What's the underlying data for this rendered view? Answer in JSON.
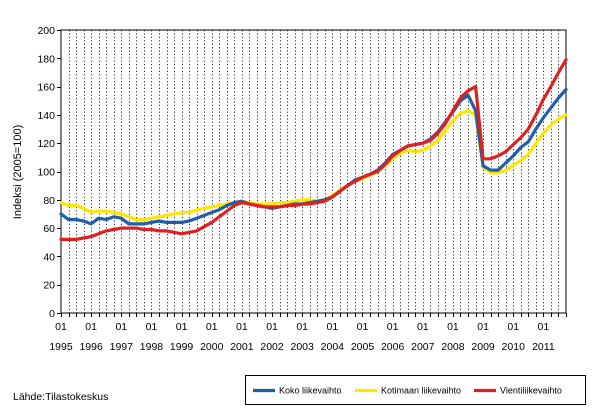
{
  "chart_data": {
    "type": "line",
    "title": "",
    "xlabel": "",
    "ylabel": "Indeksi (2005=100)",
    "ylim": [
      0,
      200
    ],
    "yticks": [
      0,
      20,
      40,
      60,
      80,
      100,
      120,
      140,
      160,
      180,
      200
    ],
    "xlim": [
      1995.0,
      2011.75
    ],
    "year_ticks": [
      {
        "month": "01",
        "year": "1995"
      },
      {
        "month": "01",
        "year": "1996"
      },
      {
        "month": "01",
        "year": "1997"
      },
      {
        "month": "01",
        "year": "1998"
      },
      {
        "month": "01",
        "year": "1999"
      },
      {
        "month": "01",
        "year": "2000"
      },
      {
        "month": "01",
        "year": "2001"
      },
      {
        "month": "01",
        "year": "2002"
      },
      {
        "month": "01",
        "year": "2003"
      },
      {
        "month": "01",
        "year": "2004"
      },
      {
        "month": "01",
        "year": "2005"
      },
      {
        "month": "01",
        "year": "2006"
      },
      {
        "month": "01",
        "year": "2007"
      },
      {
        "month": "01",
        "year": "2008"
      },
      {
        "month": "01",
        "year": "2009"
      },
      {
        "month": "01",
        "year": "2010"
      },
      {
        "month": "01",
        "year": "2011"
      }
    ],
    "grid": "vertical dashed at every quarter",
    "legend_position": "bottom-right",
    "series": [
      {
        "name": "Koko liikevaihto",
        "color": "#1f5fa8",
        "x": [
          1995.0,
          1995.25,
          1995.5,
          1995.75,
          1996.0,
          1996.25,
          1996.5,
          1996.75,
          1997.0,
          1997.25,
          1997.5,
          1997.75,
          1998.0,
          1998.25,
          1998.5,
          1998.75,
          1999.0,
          1999.25,
          1999.5,
          1999.75,
          2000.0,
          2000.25,
          2000.5,
          2000.75,
          2001.0,
          2001.25,
          2001.5,
          2001.75,
          2002.0,
          2002.25,
          2002.5,
          2002.75,
          2003.0,
          2003.25,
          2003.5,
          2003.75,
          2004.0,
          2004.25,
          2004.5,
          2004.75,
          2005.0,
          2005.25,
          2005.5,
          2005.75,
          2006.0,
          2006.25,
          2006.5,
          2006.75,
          2007.0,
          2007.25,
          2007.5,
          2007.75,
          2008.0,
          2008.25,
          2008.5,
          2008.75,
          2009.0,
          2009.25,
          2009.5,
          2009.75,
          2010.0,
          2010.25,
          2010.5,
          2010.75,
          2011.0,
          2011.25,
          2011.5,
          2011.75
        ],
        "values": [
          70,
          66,
          66,
          65,
          63,
          67,
          66,
          68,
          67,
          63,
          63,
          63,
          64,
          65,
          64,
          64,
          64,
          65,
          67,
          69,
          71,
          73,
          76,
          78,
          79,
          77,
          76,
          75,
          74,
          75,
          76,
          77,
          77,
          78,
          79,
          80,
          82,
          86,
          90,
          94,
          96,
          98,
          101,
          106,
          112,
          115,
          118,
          119,
          120,
          123,
          128,
          135,
          142,
          150,
          154,
          143,
          104,
          101,
          101,
          106,
          111,
          117,
          121,
          130,
          138,
          145,
          152,
          158
        ]
      },
      {
        "name": "Kotimaan liikevaihto",
        "color": "#ffe600",
        "x": [
          1995.0,
          1995.25,
          1995.5,
          1995.75,
          1996.0,
          1996.25,
          1996.5,
          1996.75,
          1997.0,
          1997.25,
          1997.5,
          1997.75,
          1998.0,
          1998.25,
          1998.5,
          1998.75,
          1999.0,
          1999.25,
          1999.5,
          1999.75,
          2000.0,
          2000.25,
          2000.5,
          2000.75,
          2001.0,
          2001.25,
          2001.5,
          2001.75,
          2002.0,
          2002.25,
          2002.5,
          2002.75,
          2003.0,
          2003.25,
          2003.5,
          2003.75,
          2004.0,
          2004.25,
          2004.5,
          2004.75,
          2005.0,
          2005.25,
          2005.5,
          2005.75,
          2006.0,
          2006.25,
          2006.5,
          2006.75,
          2007.0,
          2007.25,
          2007.5,
          2007.75,
          2008.0,
          2008.25,
          2008.5,
          2008.75,
          2009.0,
          2009.25,
          2009.5,
          2009.75,
          2010.0,
          2010.25,
          2010.5,
          2010.75,
          2011.0,
          2011.25,
          2011.5,
          2011.75
        ],
        "values": [
          78,
          76,
          76,
          74,
          71,
          72,
          72,
          71,
          70,
          68,
          66,
          66,
          67,
          68,
          69,
          70,
          71,
          71,
          73,
          74,
          75,
          76,
          77,
          78,
          79,
          78,
          77,
          77,
          77,
          78,
          78,
          79,
          80,
          80,
          79,
          80,
          83,
          87,
          90,
          93,
          95,
          97,
          100,
          104,
          109,
          113,
          115,
          114,
          115,
          118,
          122,
          129,
          136,
          141,
          143,
          140,
          103,
          99,
          99,
          101,
          104,
          108,
          112,
          120,
          127,
          133,
          137,
          140
        ]
      },
      {
        "name": "Vientiliikevaihto",
        "color": "#e02020",
        "x": [
          1995.0,
          1995.25,
          1995.5,
          1995.75,
          1996.0,
          1996.25,
          1996.5,
          1996.75,
          1997.0,
          1997.25,
          1997.5,
          1997.75,
          1998.0,
          1998.25,
          1998.5,
          1998.75,
          1999.0,
          1999.25,
          1999.5,
          1999.75,
          2000.0,
          2000.25,
          2000.5,
          2000.75,
          2001.0,
          2001.25,
          2001.5,
          2001.75,
          2002.0,
          2002.25,
          2002.5,
          2002.75,
          2003.0,
          2003.25,
          2003.5,
          2003.75,
          2004.0,
          2004.25,
          2004.5,
          2004.75,
          2005.0,
          2005.25,
          2005.5,
          2005.75,
          2006.0,
          2006.25,
          2006.5,
          2006.75,
          2007.0,
          2007.25,
          2007.5,
          2007.75,
          2008.0,
          2008.25,
          2008.5,
          2008.75,
          2009.0,
          2009.25,
          2009.5,
          2009.75,
          2010.0,
          2010.25,
          2010.5,
          2010.75,
          2011.0,
          2011.25,
          2011.5,
          2011.75
        ],
        "values": [
          52,
          52,
          52,
          53,
          54,
          56,
          58,
          59,
          60,
          60,
          60,
          59,
          59,
          58,
          58,
          57,
          56,
          57,
          58,
          61,
          64,
          68,
          72,
          76,
          78,
          77,
          76,
          75,
          75,
          75,
          76,
          76,
          77,
          77,
          78,
          79,
          82,
          86,
          90,
          93,
          96,
          98,
          100,
          105,
          111,
          115,
          118,
          119,
          120,
          122,
          127,
          134,
          143,
          152,
          157,
          160,
          109,
          109,
          111,
          114,
          119,
          124,
          130,
          140,
          151,
          160,
          170,
          179
        ]
      }
    ],
    "source": "Lähde:Tilastokeskus"
  }
}
